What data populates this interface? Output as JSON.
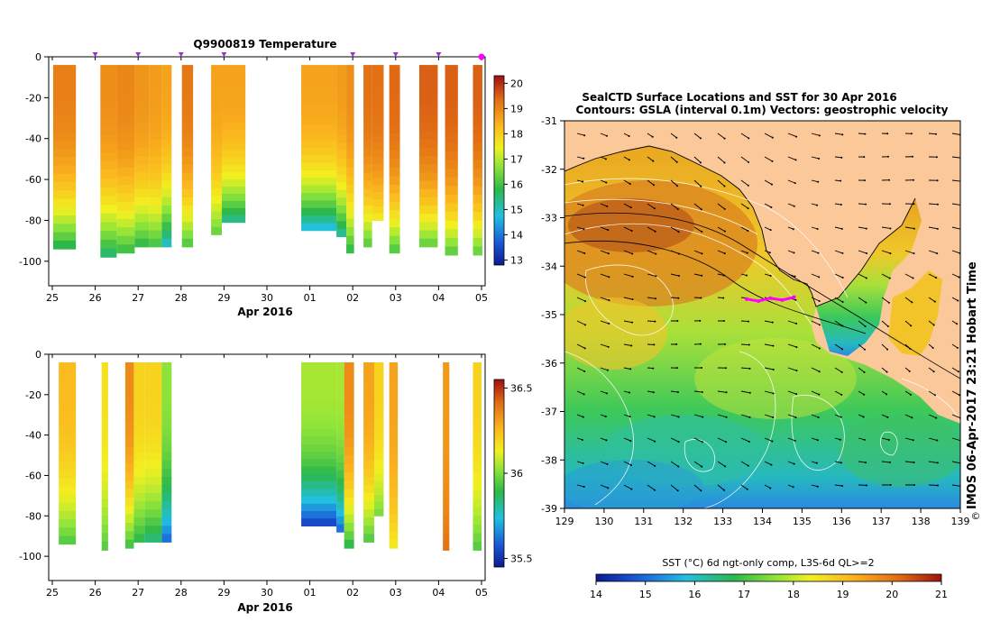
{
  "chart_data": [
    {
      "type": "heatmap",
      "title": "Q9900819  Temperature",
      "xlabel": "Apr 2016",
      "ylabel": "",
      "x_ticks": [
        "25",
        "26",
        "27",
        "28",
        "29",
        "30",
        "01",
        "02",
        "03",
        "04",
        "05"
      ],
      "y_ticks": [
        "0",
        "-20",
        "-40",
        "-60",
        "-80",
        "-100"
      ],
      "ylim": [
        -112,
        0
      ],
      "colorbar": {
        "ticks": [
          "20",
          "19",
          "18",
          "17",
          "16",
          "15",
          "14",
          "13"
        ],
        "range": [
          12.8,
          20.3
        ]
      },
      "profile_markers": [
        1,
        2,
        3,
        4,
        7,
        8,
        9,
        10
      ],
      "profiles": [
        {
          "x0": 0.02,
          "x1": 0.55,
          "bottom": -94,
          "top_t": 19.1,
          "bottom_t": 15.8
        },
        {
          "x0": 1.12,
          "x1": 1.5,
          "bottom": -98,
          "top_t": 18.9,
          "bottom_t": 15.6
        },
        {
          "x0": 1.5,
          "x1": 1.92,
          "bottom": -96,
          "top_t": 19.0,
          "bottom_t": 16.0
        },
        {
          "x0": 1.92,
          "x1": 2.25,
          "bottom": -93,
          "top_t": 18.8,
          "bottom_t": 15.9
        },
        {
          "x0": 2.25,
          "x1": 2.55,
          "bottom": -93,
          "top_t": 18.7,
          "bottom_t": 16.1
        },
        {
          "x0": 2.55,
          "x1": 2.78,
          "bottom": -93,
          "top_t": 18.6,
          "bottom_t": 15.0
        },
        {
          "x0": 3.02,
          "x1": 3.28,
          "bottom": -93,
          "top_t": 19.2,
          "bottom_t": 16.2
        },
        {
          "x0": 3.7,
          "x1": 3.95,
          "bottom": -87,
          "top_t": 18.6,
          "bottom_t": 16.4
        },
        {
          "x0": 3.95,
          "x1": 4.5,
          "bottom": -81,
          "top_t": 18.6,
          "bottom_t": 15.4
        },
        {
          "x0": 5.8,
          "x1": 6.62,
          "bottom": -85,
          "top_t": 18.6,
          "bottom_t": 14.8
        },
        {
          "x0": 6.62,
          "x1": 6.85,
          "bottom": -88,
          "top_t": 18.7,
          "bottom_t": 15.3
        },
        {
          "x0": 6.85,
          "x1": 7.03,
          "bottom": -96,
          "top_t": 18.9,
          "bottom_t": 15.9
        },
        {
          "x0": 7.25,
          "x1": 7.45,
          "bottom": -93,
          "top_t": 19.3,
          "bottom_t": 16.3
        },
        {
          "x0": 7.45,
          "x1": 7.72,
          "bottom": -80,
          "top_t": 19.3,
          "bottom_t": 17.6
        },
        {
          "x0": 7.85,
          "x1": 8.1,
          "bottom": -96,
          "top_t": 19.4,
          "bottom_t": 16.2
        },
        {
          "x0": 8.55,
          "x1": 8.98,
          "bottom": -93,
          "top_t": 19.5,
          "bottom_t": 16.4
        },
        {
          "x0": 9.15,
          "x1": 9.45,
          "bottom": -97,
          "top_t": 19.5,
          "bottom_t": 16.3
        },
        {
          "x0": 9.8,
          "x1": 10.02,
          "bottom": -97,
          "top_t": 19.5,
          "bottom_t": 16.4
        }
      ]
    },
    {
      "type": "heatmap",
      "title": "",
      "xlabel": "Apr 2016",
      "ylabel": "",
      "x_ticks": [
        "25",
        "26",
        "27",
        "28",
        "29",
        "30",
        "01",
        "02",
        "03",
        "04",
        "05"
      ],
      "y_ticks": [
        "0",
        "-20",
        "-40",
        "-60",
        "-80",
        "-100"
      ],
      "ylim": [
        -112,
        0
      ],
      "colorbar": {
        "ticks": [
          "36.5",
          "36",
          "35.5"
        ],
        "range": [
          35.45,
          36.55
        ]
      },
      "profiles": [
        {
          "x0": 0.15,
          "x1": 0.55,
          "bottom": -94,
          "top_s": 36.25,
          "bottom_s": 35.95
        },
        {
          "x0": 1.15,
          "x1": 1.3,
          "bottom": -97,
          "top_s": 36.17,
          "bottom_s": 35.95
        },
        {
          "x0": 1.7,
          "x1": 1.9,
          "bottom": -96,
          "top_s": 36.35,
          "bottom_s": 35.93
        },
        {
          "x0": 1.9,
          "x1": 2.15,
          "bottom": -93,
          "top_s": 36.2,
          "bottom_s": 35.9
        },
        {
          "x0": 2.15,
          "x1": 2.55,
          "bottom": -93,
          "top_s": 36.2,
          "bottom_s": 35.85
        },
        {
          "x0": 2.55,
          "x1": 2.78,
          "bottom": -93,
          "top_s": 36.02,
          "bottom_s": 35.62
        },
        {
          "x0": 5.8,
          "x1": 6.62,
          "bottom": -85,
          "top_s": 36.05,
          "bottom_s": 35.55
        },
        {
          "x0": 6.62,
          "x1": 6.8,
          "bottom": -88,
          "top_s": 36.05,
          "bottom_s": 35.62
        },
        {
          "x0": 6.8,
          "x1": 7.03,
          "bottom": -96,
          "top_s": 36.35,
          "bottom_s": 35.9
        },
        {
          "x0": 7.25,
          "x1": 7.5,
          "bottom": -93,
          "top_s": 36.3,
          "bottom_s": 35.95
        },
        {
          "x0": 7.5,
          "x1": 7.72,
          "bottom": -80,
          "top_s": 36.2,
          "bottom_s": 36.0
        },
        {
          "x0": 7.85,
          "x1": 8.05,
          "bottom": -96,
          "top_s": 36.3,
          "bottom_s": 36.15
        },
        {
          "x0": 9.1,
          "x1": 9.25,
          "bottom": -97,
          "top_s": 36.32,
          "bottom_s": 36.4
        },
        {
          "x0": 9.8,
          "x1": 10.0,
          "bottom": -97,
          "top_s": 36.2,
          "bottom_s": 35.95
        }
      ]
    },
    {
      "type": "heatmap",
      "title": "SealCTD Surface Locations and SST for 30 Apr 2016",
      "subtitle": "Contours: GSLA (interval 0.1m) Vectors: geostrophic velocity",
      "x_ticks": [
        "129",
        "130",
        "131",
        "132",
        "133",
        "134",
        "135",
        "136",
        "137",
        "138",
        "139"
      ],
      "y_ticks": [
        "-31",
        "-32",
        "-33",
        "-34",
        "-35",
        "-36",
        "-37",
        "-38",
        "-39"
      ],
      "xlim": [
        129,
        139
      ],
      "ylim": [
        -39,
        -31
      ],
      "colorbar": {
        "label": "SST (°C) 6d ngt-only comp, L3S-6d QL>=2",
        "ticks": [
          "14",
          "15",
          "16",
          "17",
          "18",
          "19",
          "20",
          "21"
        ],
        "range": [
          14,
          21
        ]
      },
      "seal_track_lon": [
        133.6,
        133.9,
        134.2,
        134.5,
        134.8
      ],
      "seal_track_lat": [
        -34.68,
        -34.72,
        -34.66,
        -34.7,
        -34.64
      ]
    }
  ],
  "side_label": "IMOS 06-Apr-2017 23:21 Hobart Time",
  "copyright": "©",
  "colors": {
    "land": "#fbc89a",
    "marker": "#9b30d0",
    "track": "#ff00ff"
  }
}
